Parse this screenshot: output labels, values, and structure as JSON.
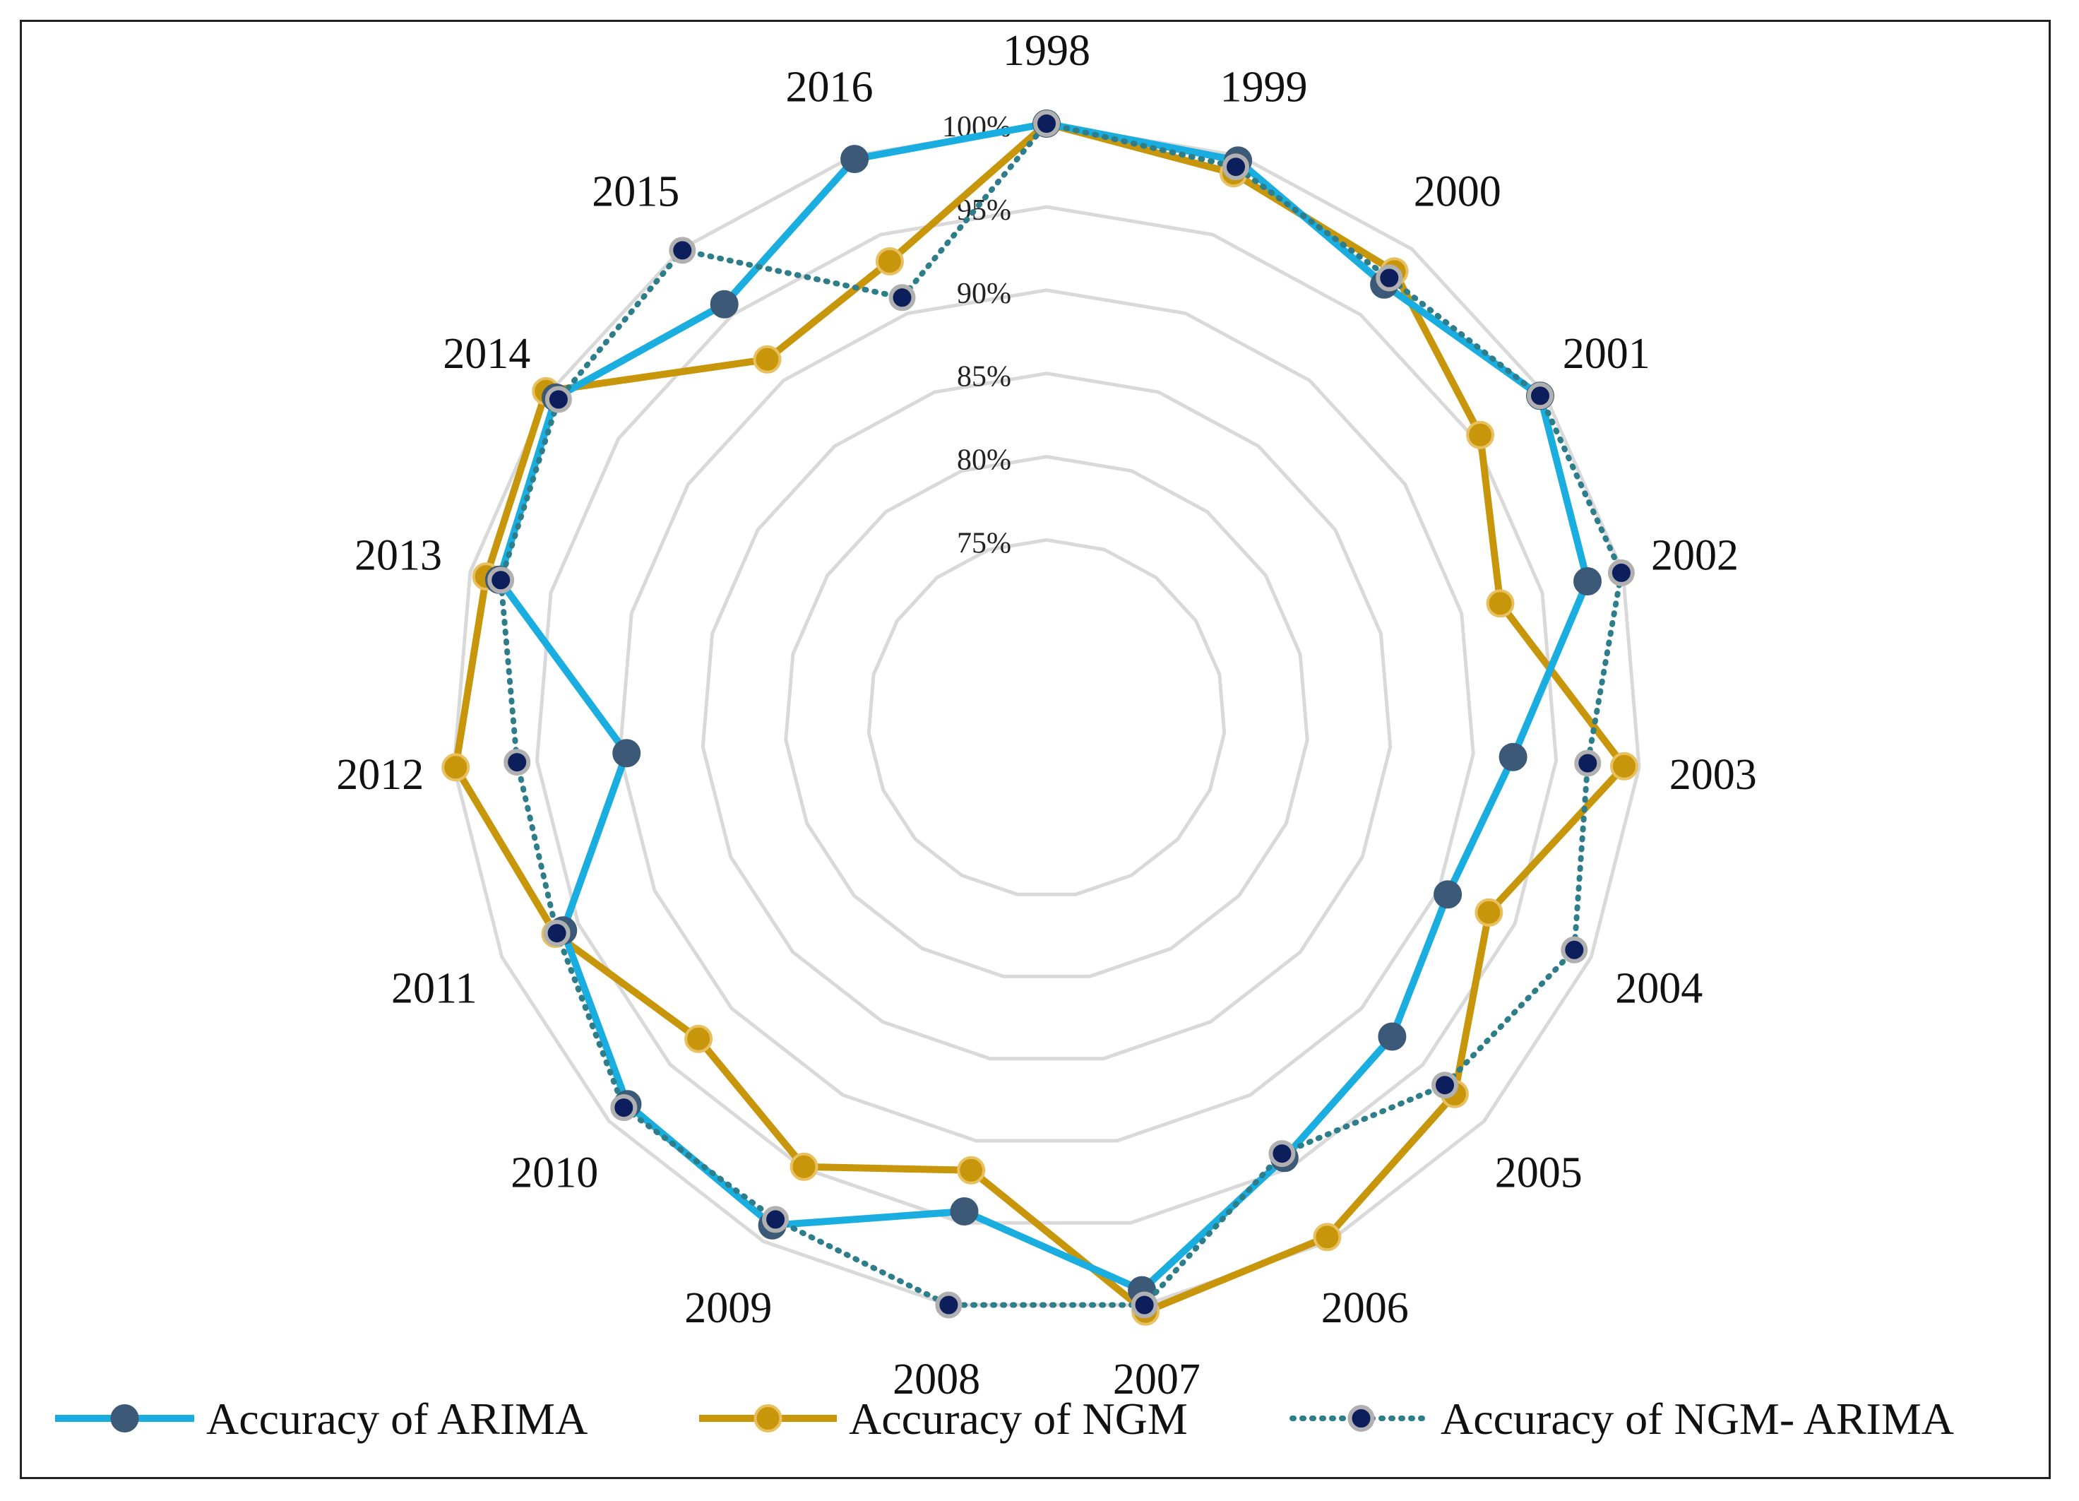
{
  "chart_data": {
    "type": "radar",
    "title": "",
    "categories": [
      "1998",
      "1999",
      "2000",
      "2001",
      "2002",
      "2003",
      "2004",
      "2005",
      "2006",
      "2007",
      "2008",
      "2009",
      "2010",
      "2011",
      "2012",
      "2013",
      "2014",
      "2015",
      "2016"
    ],
    "rlim": [
      75,
      100
    ],
    "ticks": [
      75,
      80,
      85,
      90,
      95,
      100
    ],
    "tick_labels": [
      "75%",
      "80%",
      "85%",
      "90%",
      "95%",
      "100%"
    ],
    "grid": true,
    "legend_position": "bottom",
    "series": [
      {
        "name": "Accuracy of ARIMA",
        "color": "#1aaee0",
        "marker_color": "#3c5a78",
        "style": "solid",
        "values": [
          100,
          99.7,
          97.3,
          99.7,
          97.8,
          92.4,
          90.6,
          92.5,
          94.3,
          99.1,
          94.3,
          98.9,
          98.5,
          96.0,
          89.6,
          98.2,
          99.5,
          95.8,
          99.8
        ]
      },
      {
        "name": "Accuracy of NGM",
        "color": "#c8960a",
        "marker_color": "#c8960a",
        "style": "solid",
        "values": [
          100,
          98.9,
          98.3,
          95.4,
          92.4,
          99.1,
          93.3,
          97.6,
          99.7,
          100.4,
          91.8,
          94.9,
          92.7,
          96.5,
          99.9,
          99.0,
          100.2,
          91.6,
          93.3
        ]
      },
      {
        "name": "Accuracy of NGM- ARIMA",
        "color": "#2e7d8a",
        "marker_color": "#0c1f5c",
        "style": "dotted",
        "values": [
          100,
          99.3,
          97.8,
          99.7,
          99.9,
          96.9,
          98.9,
          96.8,
          94.0,
          100.0,
          100.0,
          98.5,
          98.8,
          96.4,
          96.2,
          98.1,
          99.3,
          99.9,
          91.0
        ]
      }
    ]
  }
}
